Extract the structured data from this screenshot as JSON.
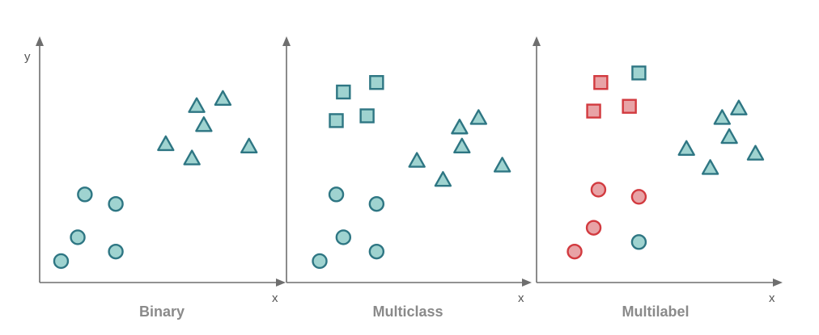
{
  "colors": {
    "teal_fill": "#9fd3d0",
    "teal_stroke": "#2e7683",
    "red_fill": "#e8a3a6",
    "red_stroke": "#d23a3f",
    "axis": "#6e6e6e"
  },
  "chart_data": [
    {
      "type": "scatter",
      "title": "Binary",
      "xlabel": "x",
      "ylabel": "y",
      "xlim": [
        0,
        10
      ],
      "ylim": [
        0,
        10
      ],
      "grid": false,
      "series": [
        {
          "marker": "circle",
          "color": "teal",
          "x": [
            0.9,
            1.9,
            1.6,
            3.2,
            3.2
          ],
          "y": [
            0.9,
            3.7,
            1.9,
            3.3,
            1.3
          ]
        },
        {
          "marker": "triangle",
          "color": "teal",
          "x": [
            5.3,
            6.4,
            6.6,
            6.9,
            7.7,
            8.8
          ],
          "y": [
            5.8,
            5.2,
            7.4,
            6.6,
            7.7,
            5.7
          ]
        }
      ]
    },
    {
      "type": "scatter",
      "title": "Multiclass",
      "xlabel": "x",
      "ylabel": "",
      "xlim": [
        0,
        10
      ],
      "ylim": [
        0,
        10
      ],
      "grid": false,
      "series": [
        {
          "marker": "circle",
          "color": "teal",
          "x": [
            1.4,
            2.1,
            2.4,
            3.8,
            3.8
          ],
          "y": [
            0.9,
            3.7,
            1.9,
            3.3,
            1.3
          ]
        },
        {
          "marker": "square",
          "color": "teal",
          "x": [
            2.1,
            2.4,
            3.4,
            3.8
          ],
          "y": [
            6.8,
            8.0,
            7.0,
            8.4
          ]
        },
        {
          "marker": "triangle",
          "color": "teal",
          "x": [
            5.5,
            6.6,
            7.3,
            7.4,
            8.1,
            9.1
          ],
          "y": [
            5.1,
            4.3,
            6.5,
            5.7,
            6.9,
            4.9
          ]
        }
      ]
    },
    {
      "type": "scatter",
      "title": "Multilabel",
      "xlabel": "x",
      "ylabel": "",
      "xlim": [
        0,
        10
      ],
      "ylim": [
        0,
        10
      ],
      "grid": false,
      "series": [
        {
          "marker": "circle",
          "color": "red",
          "x": [
            1.6,
            2.4,
            2.6,
            4.3
          ],
          "y": [
            1.3,
            2.3,
            3.9,
            3.6
          ]
        },
        {
          "marker": "circle",
          "color": "teal",
          "x": [
            4.3
          ],
          "y": [
            1.7
          ]
        },
        {
          "marker": "square",
          "color": "red",
          "x": [
            2.4,
            2.7,
            3.9
          ],
          "y": [
            7.2,
            8.4,
            7.4
          ]
        },
        {
          "marker": "square",
          "color": "teal",
          "x": [
            4.3
          ],
          "y": [
            8.8
          ]
        },
        {
          "marker": "triangle",
          "color": "teal",
          "x": [
            6.3,
            7.3,
            7.8,
            8.1,
            8.5,
            9.2
          ],
          "y": [
            5.6,
            4.8,
            6.9,
            6.1,
            7.3,
            5.4
          ]
        }
      ]
    }
  ]
}
